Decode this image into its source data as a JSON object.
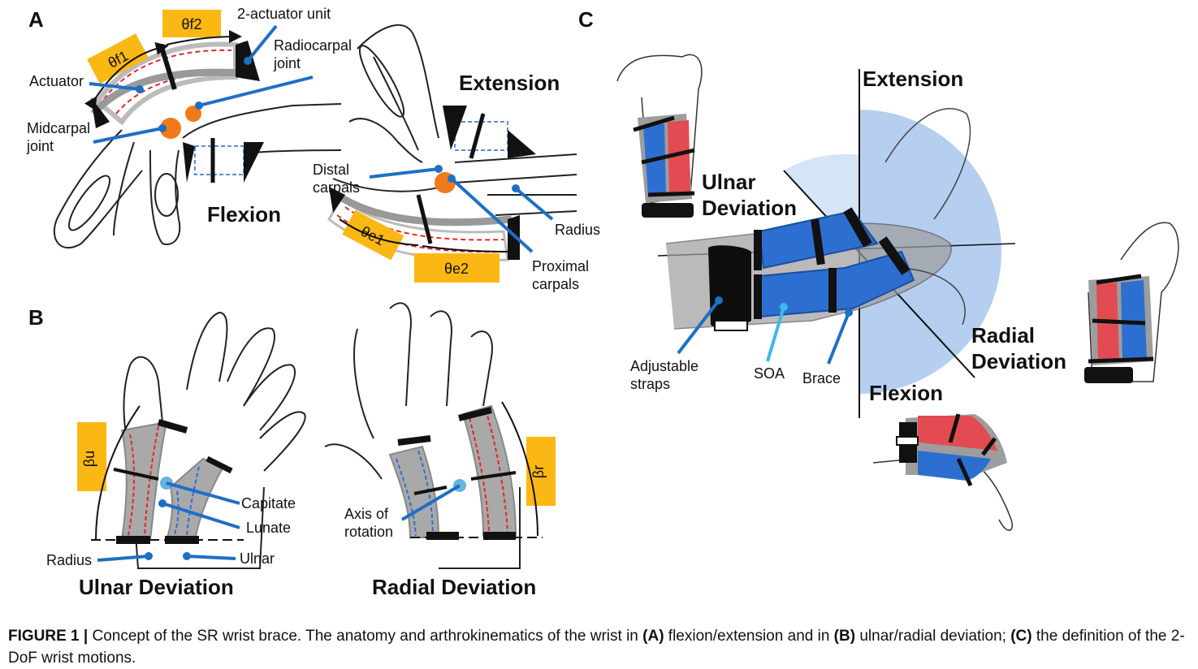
{
  "panels": {
    "a": {
      "letter": "A",
      "flexion_title": "Flexion",
      "extension_title": "Extension",
      "labels": {
        "two_actuator_unit": "2-actuator unit",
        "radiocarpal_1": "Radiocarpal",
        "radiocarpal_2": "joint",
        "actuator": "Actuator",
        "midcarpal_1": "Midcarpal",
        "midcarpal_2": "joint",
        "distal_1": "Distal",
        "distal_2": "carpals",
        "radius": "Radius",
        "proximal_1": "Proximal",
        "proximal_2": "carpals"
      },
      "angles": {
        "theta_f1": "θf1",
        "theta_f2": "θf2",
        "theta_e1": "θe1",
        "theta_e2": "θe2"
      }
    },
    "b": {
      "letter": "B",
      "ulnar_title": "Ulnar Deviation",
      "radial_title": "Radial Deviation",
      "labels": {
        "capitate": "Capitate",
        "lunate": "Lunate",
        "radius": "Radius",
        "ulnar": "Ulnar",
        "axis_1": "Axis of",
        "axis_2": "rotation"
      },
      "angles": {
        "beta_u": "βu",
        "beta_r": "βr"
      }
    },
    "c": {
      "letter": "C",
      "extension": "Extension",
      "flexion": "Flexion",
      "ulnar_1": "Ulnar",
      "ulnar_2": "Deviation",
      "radial_1": "Radial",
      "radial_2": "Deviation",
      "straps_1": "Adjustable",
      "straps_2": "straps",
      "soa": "SOA",
      "brace": "Brace"
    }
  },
  "caption": {
    "label": "FIGURE 1 |",
    "t1": " Concept of the SR wrist brace. The anatomy and arthrokinematics of the wrist in ",
    "a": "(A)",
    "t2": " flexion/extension and in ",
    "b": "(B)",
    "t3": " ulnar/radial deviation; ",
    "c": "(C)",
    "t4": " the definition of the 2-DoF wrist motions."
  },
  "colors": {
    "actuator_red": "#e8242a",
    "actuator_blue": "#2d6fd0",
    "angle_box": "#fbb814",
    "leader_blue": "#1f6fc4",
    "brace_gray": "#a9a9a9",
    "bone_orange": "#f07a1a"
  }
}
